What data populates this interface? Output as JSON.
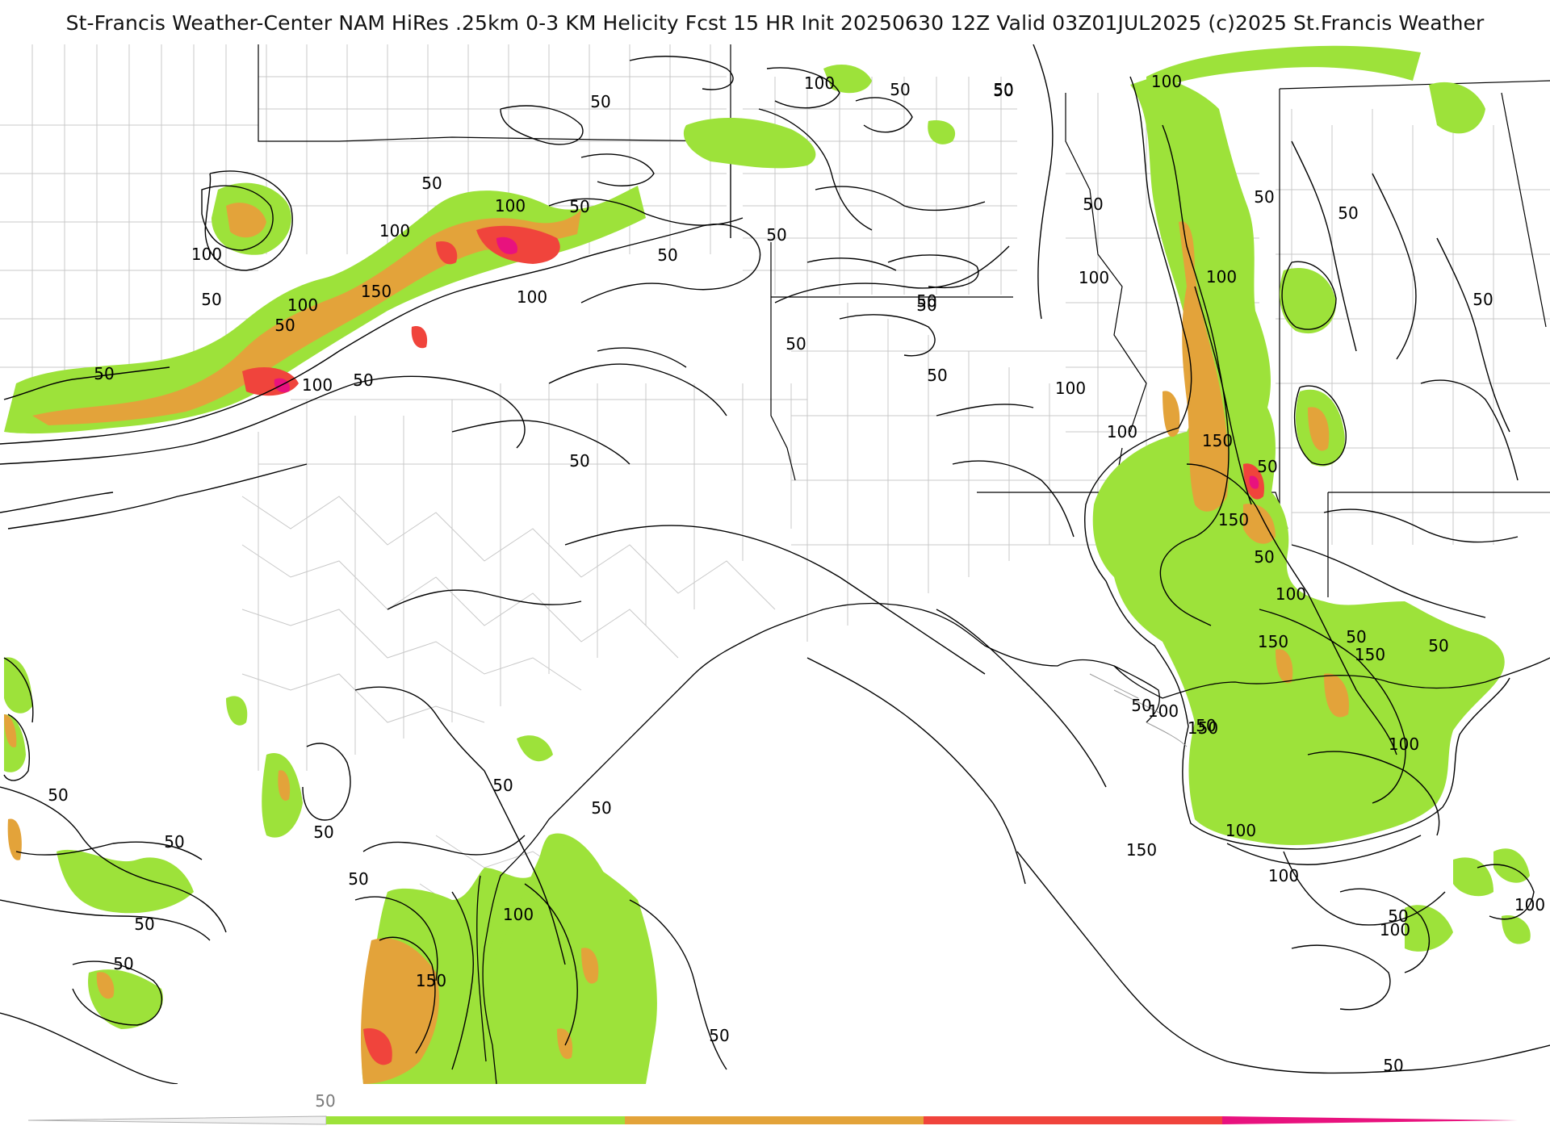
{
  "header": {
    "title": "St-Francis Weather-Center NAM HiRes .25km 0-3 KM Helicity Fcst 15 HR Init 20250630 12Z  Valid 03Z01JUL2025    (c)2025 St.Francis Weather"
  },
  "map": {
    "field": "0-3 KM Helicity",
    "contour_levels": [
      50,
      100,
      150
    ],
    "colors": {
      "level_50": "#9de23a",
      "level_100": "#e3a33a",
      "level_150": "#f0443c",
      "level_200": "#e8127e",
      "contour": "#000000",
      "county_lines": "#bdbdbd",
      "state_lines": "#000000"
    },
    "contour_labels": [
      {
        "text": "50"
      },
      {
        "text": "100"
      },
      {
        "text": "50"
      },
      {
        "text": "50"
      },
      {
        "text": "100"
      },
      {
        "text": "50"
      },
      {
        "text": "100"
      },
      {
        "text": "50"
      },
      {
        "text": "100"
      },
      {
        "text": "150"
      },
      {
        "text": "50"
      },
      {
        "text": "50"
      },
      {
        "text": "100"
      },
      {
        "text": "50"
      },
      {
        "text": "100"
      },
      {
        "text": "100"
      },
      {
        "text": "50"
      },
      {
        "text": "100"
      },
      {
        "text": "50"
      },
      {
        "text": "50"
      },
      {
        "text": "50"
      },
      {
        "text": "50"
      },
      {
        "text": "50"
      },
      {
        "text": "50"
      },
      {
        "text": "100"
      },
      {
        "text": "50"
      },
      {
        "text": "50"
      },
      {
        "text": "50"
      },
      {
        "text": "50"
      },
      {
        "text": "100"
      },
      {
        "text": "50"
      },
      {
        "text": "100"
      },
      {
        "text": "50"
      },
      {
        "text": "100"
      },
      {
        "text": "150"
      },
      {
        "text": "50"
      },
      {
        "text": "150"
      },
      {
        "text": "50"
      },
      {
        "text": "100"
      },
      {
        "text": "50"
      },
      {
        "text": "150"
      },
      {
        "text": "50"
      },
      {
        "text": "50"
      },
      {
        "text": "100"
      },
      {
        "text": "50"
      },
      {
        "text": "150"
      },
      {
        "text": "150"
      },
      {
        "text": "100"
      },
      {
        "text": "150"
      },
      {
        "text": "100"
      },
      {
        "text": "50"
      },
      {
        "text": "50"
      },
      {
        "text": "50"
      },
      {
        "text": "50"
      },
      {
        "text": "50"
      },
      {
        "text": "50"
      },
      {
        "text": "100"
      },
      {
        "text": "150"
      },
      {
        "text": "50"
      },
      {
        "text": "50"
      },
      {
        "text": "50"
      },
      {
        "text": "100"
      },
      {
        "text": "100"
      },
      {
        "text": "50"
      },
      {
        "text": "100"
      },
      {
        "text": "50"
      }
    ]
  },
  "legend": {
    "tick_label": "50",
    "segments": [
      {
        "color": "#9de23a"
      },
      {
        "color": "#e3a33a"
      },
      {
        "color": "#f0443c"
      },
      {
        "color": "#e8127e"
      }
    ]
  }
}
